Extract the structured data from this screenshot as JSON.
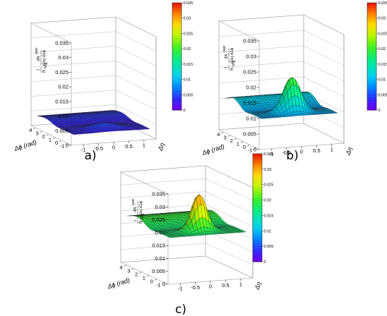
{
  "chart_data": [
    {
      "type": "surface3d",
      "panel_label": "a)",
      "xlabel": "Δϕ (rad)",
      "ylabel": "Δη",
      "zlabel_num": "dN",
      "zlabel_sup": "pair",
      "zlabel_den": "dΔη dΔϕ",
      "zlabel_pre_num": "1",
      "zlabel_pre_den": "N",
      "zlabel_pre_sub": "trig",
      "x_ticks": [
        "-1",
        "0",
        "1",
        "2",
        "3",
        "4"
      ],
      "y_ticks": [
        "-1",
        "-0.5",
        "0",
        "0.5",
        "1"
      ],
      "z_ticks": [
        "0",
        "0.005",
        "0.01",
        "0.015",
        "0.02",
        "0.025",
        "0.03",
        "0.035"
      ],
      "colorbar_ticks": [
        "0",
        "0.005",
        "0.01",
        "0.015",
        "0.02",
        "0.025",
        "0.03",
        "0.035"
      ],
      "xlim": [
        -1.5,
        4.7
      ],
      "ylim": [
        -1.4,
        1.4
      ],
      "zlim": [
        0,
        0.035
      ],
      "surface": {
        "base": 0.0032,
        "ridge_amp": 0.0009,
        "peak_amp": 0.0018,
        "peak_sigma_phi": 0.55,
        "peak_sigma_eta": 0.4
      }
    },
    {
      "type": "surface3d",
      "panel_label": "b)",
      "xlabel": "Δϕ (rad)",
      "ylabel": "Δη",
      "zlabel_num": "dN",
      "zlabel_sup": "pair",
      "zlabel_den": "dΔη dΔϕ",
      "zlabel_pre_num": "1",
      "zlabel_pre_den": "N",
      "zlabel_pre_sub": "trig",
      "x_ticks": [
        "-1",
        "0",
        "1",
        "2",
        "3",
        "4"
      ],
      "y_ticks": [
        "-1",
        "-0.5",
        "0",
        "0.5",
        "1"
      ],
      "z_ticks": [
        "0",
        "0.005",
        "0.01",
        "0.015",
        "0.02",
        "0.025",
        "0.03",
        "0.035"
      ],
      "colorbar_ticks": [
        "0",
        "0.005",
        "0.01",
        "0.015",
        "0.02",
        "0.025",
        "0.03",
        "0.035"
      ],
      "xlim": [
        -1.5,
        4.7
      ],
      "ylim": [
        -1.4,
        1.4
      ],
      "zlim": [
        0,
        0.035
      ],
      "surface": {
        "base": 0.0095,
        "ridge_amp": 0.0022,
        "peak_amp": 0.0115,
        "peak_sigma_phi": 0.38,
        "peak_sigma_eta": 0.28
      }
    },
    {
      "type": "surface3d",
      "panel_label": "c)",
      "xlabel": "Δϕ (rad)",
      "ylabel": "Δη",
      "zlabel_num": "dN",
      "zlabel_sup": "pair",
      "zlabel_den": "dΔη dΔϕ",
      "zlabel_pre_num": "1",
      "zlabel_pre_den": "N",
      "zlabel_pre_sub": "trig",
      "x_ticks": [
        "-1",
        "0",
        "1",
        "2",
        "3",
        "4"
      ],
      "y_ticks": [
        "-1",
        "-0.5",
        "0",
        "0.5",
        "1"
      ],
      "z_ticks": [
        "0",
        "0.005",
        "0.01",
        "0.015",
        "0.02",
        "0.025",
        "0.03",
        "0.035"
      ],
      "colorbar_ticks": [
        "0",
        "0.005",
        "0.01",
        "0.015",
        "0.02",
        "0.025",
        "0.03",
        "0.035"
      ],
      "xlim": [
        -1.5,
        4.7
      ],
      "ylim": [
        -1.4,
        1.4
      ],
      "zlim": [
        0,
        0.035
      ],
      "surface": {
        "base": 0.0175,
        "ridge_amp": 0.0022,
        "peak_amp": 0.0145,
        "peak_sigma_phi": 0.33,
        "peak_sigma_eta": 0.24
      }
    }
  ]
}
